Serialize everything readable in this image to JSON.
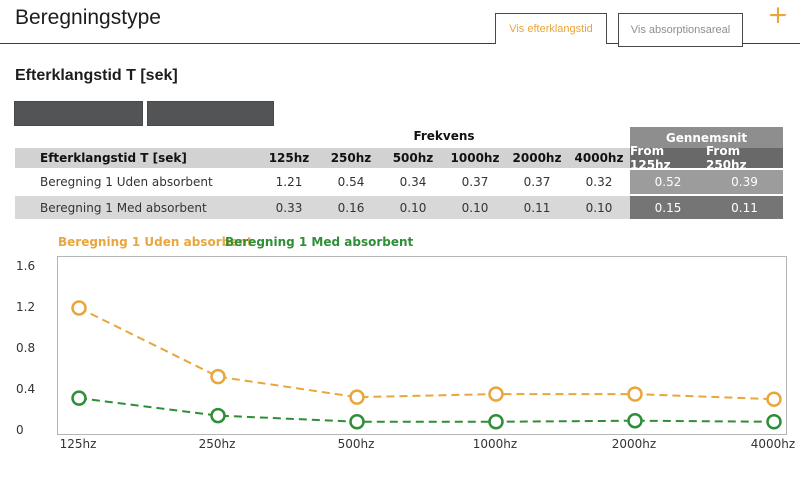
{
  "header": {
    "title": "Beregningstype",
    "tabs": [
      {
        "label": "Vis efterklangstid",
        "active": true
      },
      {
        "label": "Vis absorptionsareal",
        "active": false
      }
    ],
    "add_label": "+"
  },
  "section": {
    "heading": "Efterklangstid T [sek]"
  },
  "toolbar": {
    "button1_label": "",
    "button2_label": ""
  },
  "table": {
    "group_headers": {
      "frekvens": "Frekvens",
      "gennemsnit": "Gennemsnit"
    },
    "label_header": "Efterklangstid T [sek]",
    "freq_columns": [
      "125hz",
      "250hz",
      "500hz",
      "1000hz",
      "2000hz",
      "4000hz"
    ],
    "avg_columns": [
      "From 125hz",
      "From 250hz"
    ],
    "rows": [
      {
        "label": "Beregning 1 Uden absorbent",
        "values": [
          "1.21",
          "0.54",
          "0.34",
          "0.37",
          "0.37",
          "0.32"
        ],
        "averages": [
          "0.52",
          "0.39"
        ]
      },
      {
        "label": "Beregning 1 Med absorbent",
        "values": [
          "0.33",
          "0.16",
          "0.10",
          "0.10",
          "0.11",
          "0.10"
        ],
        "averages": [
          "0.15",
          "0.11"
        ]
      }
    ]
  },
  "chart_data": {
    "type": "line",
    "title": "",
    "x": [
      "125hz",
      "250hz",
      "500hz",
      "1000hz",
      "2000hz",
      "4000hz"
    ],
    "series": [
      {
        "name": "Beregning 1 Uden absorbent",
        "values": [
          1.21,
          0.54,
          0.34,
          0.37,
          0.37,
          0.32
        ],
        "color": "#e9a63c"
      },
      {
        "name": "Beregning 1 Med absorbent",
        "values": [
          0.33,
          0.16,
          0.1,
          0.1,
          0.11,
          0.1
        ],
        "color": "#2f8e38"
      }
    ],
    "yticks": [
      0,
      0.4,
      0.8,
      1.2,
      1.6
    ],
    "ylim": [
      0,
      1.7
    ],
    "line_style": "dashed",
    "marker": "circle-hollow",
    "grid": false,
    "legend_position": "top-left"
  },
  "colors": {
    "accent_orange": "#e9a63c",
    "accent_green": "#2f8e38",
    "table_header_bg": "#d2d2d2",
    "avg_header_bg": "#696969",
    "avg_band_bg": "#8e8e8e"
  }
}
